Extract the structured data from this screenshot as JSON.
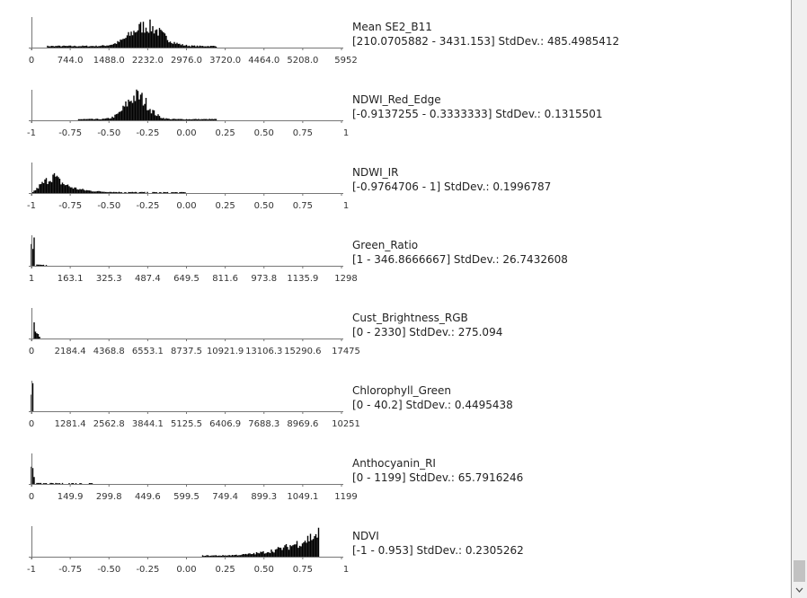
{
  "panels": [
    {
      "name": "Mean SE2_B11",
      "range": "[210.0705882 - 3431.153] StdDev.: 485.4985412",
      "ticks": [
        "0",
        "744.0",
        "1488.0",
        "2232.0",
        "2976.0",
        "3720.0",
        "4464.0",
        "5208.0",
        "5952"
      ]
    },
    {
      "name": "NDWI_Red_Edge",
      "range": "[-0.9137255 - 0.3333333] StdDev.: 0.1315501",
      "ticks": [
        "-1",
        "-0.75",
        "-0.50",
        "-0.25",
        "0.00",
        "0.25",
        "0.50",
        "0.75",
        "1"
      ]
    },
    {
      "name": "NDWI_IR",
      "range": "[-0.9764706 - 1] StdDev.: 0.1996787",
      "ticks": [
        "-1",
        "-0.75",
        "-0.50",
        "-0.25",
        "0.00",
        "0.25",
        "0.50",
        "0.75",
        "1"
      ]
    },
    {
      "name": "Green_Ratio",
      "range": "[1 - 346.8666667] StdDev.: 26.7432608",
      "ticks": [
        "1",
        "163.1",
        "325.3",
        "487.4",
        "649.5",
        "811.6",
        "973.8",
        "1135.9",
        "1298"
      ]
    },
    {
      "name": "Cust_Brightness_RGB",
      "range": "[0 - 2330] StdDev.: 275.094",
      "ticks": [
        "0",
        "2184.4",
        "4368.8",
        "6553.1",
        "8737.5",
        "10921.9",
        "13106.3",
        "15290.6",
        "17475"
      ]
    },
    {
      "name": "Chlorophyll_Green",
      "range": "[0 - 40.2] StdDev.: 0.4495438",
      "ticks": [
        "0",
        "1281.4",
        "2562.8",
        "3844.1",
        "5125.5",
        "6406.9",
        "7688.3",
        "8969.6",
        "10251"
      ]
    },
    {
      "name": "Anthocyanin_RI",
      "range": "[0 - 1199] StdDev.: 65.7916246",
      "ticks": [
        "0",
        "149.9",
        "299.8",
        "449.6",
        "599.5",
        "749.4",
        "899.3",
        "1049.1",
        "1199"
      ]
    },
    {
      "name": "NDVI",
      "range": "[-1 - 0.953] StdDev.: 0.2305262",
      "ticks": [
        "-1",
        "-0.75",
        "-0.50",
        "-0.25",
        "0.00",
        "0.25",
        "0.50",
        "0.75",
        "1"
      ]
    }
  ]
}
